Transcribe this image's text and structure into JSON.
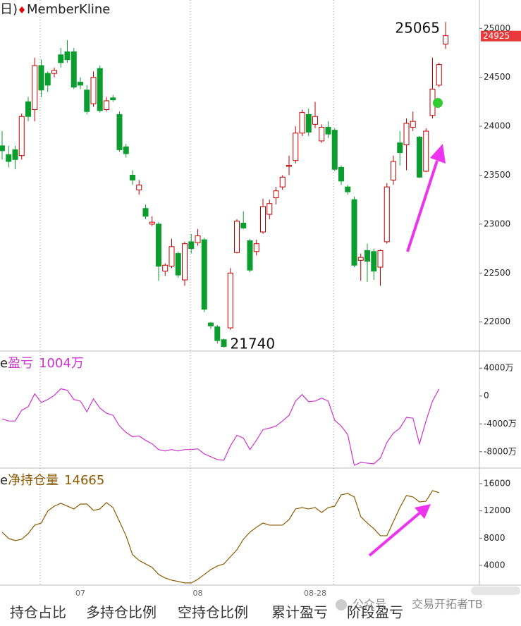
{
  "chart_data": [
    {
      "type": "candlestick",
      "period_label": "日)",
      "title": "MemberKline",
      "categories": [
        null,
        null,
        null,
        null,
        null,
        null,
        null,
        null,
        null,
        null,
        null,
        null,
        "07",
        null,
        null,
        null,
        null,
        null,
        null,
        null,
        null,
        null,
        null,
        null,
        null,
        null,
        null,
        null,
        null,
        null,
        "08",
        null,
        null,
        null,
        null,
        null,
        null,
        null,
        null,
        null,
        null,
        null,
        null,
        null,
        null,
        null,
        null,
        null,
        "08-28",
        null,
        null,
        null,
        null,
        null,
        null,
        null,
        null,
        null,
        null,
        null,
        null,
        null,
        null,
        null,
        null,
        null,
        null,
        null,
        null
      ],
      "open": [
        23800,
        23710,
        23760,
        23700,
        24250,
        24170,
        24620,
        24540,
        24540,
        24730,
        24760,
        24760,
        24450,
        24370,
        24230,
        24590,
        24170,
        24290,
        24120,
        23790,
        23500,
        23350,
        23160,
        23000,
        23000,
        22520,
        22570,
        22700,
        22430,
        22820,
        22810,
        22840,
        21990,
        21950,
        21820,
        21940,
        22710,
        23010,
        22830,
        22720,
        22920,
        23100,
        23270,
        23380,
        23590,
        23650,
        23930,
        24120,
        24020,
        23850,
        23990,
        23960,
        23580,
        23380,
        23250,
        22630,
        22730,
        22720,
        22560,
        22820,
        23450,
        23830,
        23810,
        23990,
        23890,
        23540,
        24110,
        24420,
        24840
      ],
      "close": [
        23750,
        23640,
        23660,
        24100,
        24100,
        24620,
        24370,
        24420,
        24570,
        24650,
        24680,
        24400,
        24420,
        24150,
        24500,
        24160,
        24260,
        24270,
        23760,
        23720,
        23450,
        23400,
        23080,
        23020,
        22570,
        22580,
        22770,
        22480,
        22800,
        22750,
        22880,
        22130,
        21960,
        21810,
        21750,
        22500,
        23030,
        22960,
        22530,
        22800,
        23180,
        23210,
        23340,
        23480,
        23600,
        23930,
        24140,
        23940,
        24100,
        23990,
        23920,
        23560,
        23440,
        23330,
        22580,
        22660,
        22620,
        22520,
        22730,
        23380,
        23640,
        23730,
        24030,
        24050,
        23480,
        23950,
        24380,
        24630,
        24925
      ],
      "high": [
        23950,
        23800,
        23800,
        24130,
        24300,
        24700,
        24680,
        24560,
        24600,
        24800,
        24880,
        24800,
        24500,
        24420,
        24560,
        24620,
        24300,
        24320,
        24150,
        23820,
        23550,
        23450,
        23200,
        23080,
        23020,
        22600,
        22850,
        22720,
        22820,
        22900,
        22950,
        22860,
        22000,
        21970,
        21830,
        22550,
        23050,
        23130,
        22850,
        22840,
        23260,
        23250,
        23380,
        23500,
        23700,
        24000,
        24170,
        24180,
        24250,
        24020,
        24050,
        23980,
        23600,
        23400,
        23280,
        22700,
        22800,
        22750,
        22740,
        23420,
        23700,
        23950,
        24080,
        24150,
        23900,
        23980,
        24700,
        24650,
        25065
      ],
      "low": [
        23660,
        23580,
        23560,
        23660,
        24050,
        24050,
        24300,
        24350,
        24500,
        24600,
        24650,
        24380,
        24380,
        24120,
        24200,
        24140,
        24150,
        24250,
        23740,
        23680,
        23400,
        23300,
        23050,
        22980,
        22420,
        22470,
        22550,
        22450,
        22370,
        22700,
        22780,
        22100,
        21930,
        21780,
        21740,
        21920,
        22700,
        22950,
        22510,
        22680,
        22900,
        23050,
        23200,
        23350,
        23500,
        23620,
        23900,
        23900,
        23980,
        23830,
        23880,
        23540,
        23400,
        23300,
        22560,
        22420,
        22410,
        22430,
        22370,
        22800,
        23400,
        23600,
        23550,
        23950,
        23470,
        23530,
        24080,
        24400,
        24790
      ],
      "up_color": "#c00000",
      "down_color": "#0a9e2e",
      "last_price_color": "#e83a3a",
      "ylim": [
        21710,
        25290
      ],
      "yticks": [
        22000,
        22500,
        23000,
        23500,
        24000,
        24500,
        25000
      ]
    },
    {
      "type": "line",
      "name_prefix": "e",
      "title": "盈亏",
      "series": [
        {
          "name": "盈亏",
          "color": "#cc33cc",
          "values": [
            -3280,
            -3590,
            -3590,
            -2050,
            -1540,
            310,
            -920,
            -510,
            100,
            1030,
            820,
            -510,
            -720,
            -2260,
            -410,
            -1740,
            -2460,
            -2770,
            -4310,
            -5230,
            -5850,
            -5740,
            -6360,
            -6870,
            -7690,
            -7900,
            -7690,
            -7900,
            -7690,
            -7690,
            -7590,
            -8310,
            -8720,
            -9130,
            -9230,
            -7180,
            -5640,
            -6050,
            -7690,
            -6360,
            -4820,
            -4620,
            -4310,
            -3590,
            -2770,
            -720,
            210,
            -820,
            -720,
            -310,
            -720,
            -3490,
            -4310,
            -5540,
            -9950,
            -9540,
            -9640,
            -9740,
            -8920,
            -6670,
            -5330,
            -4620,
            -3080,
            -3180,
            -6870,
            -3590,
            -720,
            1004,
            null
          ],
          "value_labels": [
            null,
            null,
            null,
            null,
            null,
            null,
            null,
            null,
            null,
            null,
            null,
            null,
            null,
            null,
            null,
            null,
            null,
            null,
            null,
            null,
            null,
            null,
            null,
            null,
            null,
            null,
            null,
            null,
            null,
            null,
            null,
            null,
            null,
            null,
            null,
            null,
            null,
            null,
            null,
            null,
            null,
            null,
            null,
            null,
            null,
            null,
            null,
            null,
            null,
            null,
            null,
            null,
            null,
            null,
            null,
            null,
            null,
            null,
            null,
            null,
            null,
            null,
            null,
            null,
            null,
            null,
            null,
            "1004万",
            null
          ]
        }
      ],
      "ylim": [
        -10150,
        6250
      ],
      "yticks": [
        {
          "value": 4000,
          "label": "4000万"
        },
        0,
        {
          "value": -4000,
          "label": "-4000万"
        },
        {
          "value": -8000,
          "label": "-8000万"
        }
      ]
    },
    {
      "type": "line",
      "name_prefix": "e",
      "title": "净持仓量",
      "series": [
        {
          "name": "净持仓量",
          "color": "#8b5a00",
          "values": [
            8870,
            7940,
            7630,
            7830,
            8660,
            9900,
            10210,
            11970,
            12690,
            13110,
            12690,
            12280,
            13000,
            13000,
            12070,
            12280,
            13210,
            12480,
            10420,
            8350,
            5560,
            4730,
            4210,
            3700,
            2660,
            2140,
            1830,
            1630,
            1420,
            1420,
            1940,
            2660,
            3390,
            3900,
            4210,
            5250,
            6280,
            7830,
            8870,
            9590,
            10210,
            9900,
            9900,
            9900,
            10730,
            12280,
            12480,
            12280,
            12480,
            11760,
            12480,
            12690,
            14350,
            14550,
            14040,
            11140,
            10210,
            9380,
            8350,
            8350,
            10420,
            12480,
            14240,
            14040,
            13310,
            13420,
            14970,
            14665,
            null
          ]
        }
      ],
      "ylim": [
        1100,
        18170
      ],
      "yticks": [
        4000,
        8000,
        12000,
        16000
      ]
    }
  ],
  "tabs": [
    "持仓占比",
    "多持仓比例",
    "空持仓比例",
    "累计盈亏",
    "阶段盈亏"
  ],
  "watermark": [
    "公众号",
    "交易开拓者TB"
  ]
}
